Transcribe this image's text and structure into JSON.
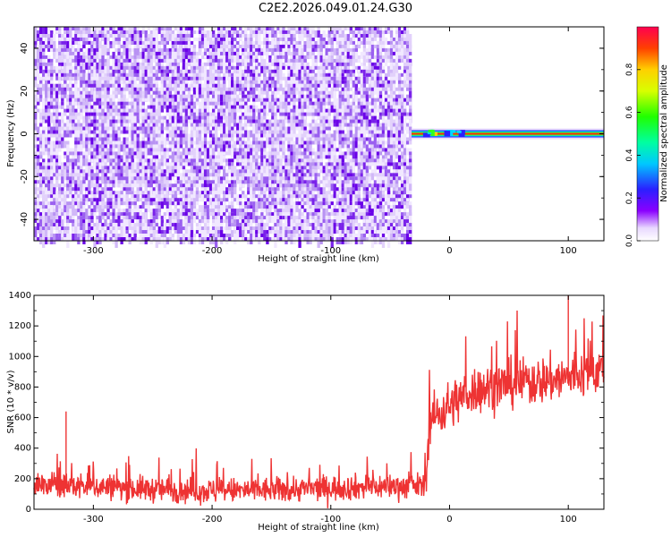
{
  "title": "C2E2.2026.049.01.24.G30",
  "colors": {
    "red": "#ee3333",
    "purple": "#6a00e8",
    "lavender": "#d7c3f6"
  },
  "chart_data": [
    {
      "type": "heatmap",
      "xlabel": "Height of straight line (km)",
      "ylabel": "Frequency (Hz)",
      "xlim": [
        -350,
        130
      ],
      "ylim": [
        -50,
        50
      ],
      "xticks": [
        -300,
        -200,
        -100,
        0,
        100
      ],
      "yticks": [
        -40,
        -20,
        0,
        20,
        40
      ],
      "noise_region_x": [
        -350,
        -32
      ],
      "signal_line_x": [
        -32,
        130
      ],
      "signal_frequency": 0,
      "colorbar": {
        "label": "Normalized spectral amplitude",
        "range": [
          0,
          1
        ],
        "ticks": [
          0.0,
          0.2,
          0.4,
          0.6,
          0.8
        ],
        "colormap": "rainbow"
      }
    },
    {
      "type": "line",
      "xlabel": "Height of straight line (km)",
      "ylabel": "SNR (10 * v/v)",
      "xlim": [
        -350,
        130
      ],
      "ylim": [
        0,
        1400
      ],
      "xticks": [
        -300,
        -200,
        -100,
        0,
        100
      ],
      "yticks": [
        0,
        200,
        400,
        600,
        800,
        1000,
        1200,
        1400
      ],
      "series": [
        {
          "color": "#ee3333",
          "x": [
            -350,
            -300,
            -250,
            -200,
            -150,
            -100,
            -50,
            -20,
            -17,
            -10,
            0,
            20,
            50,
            100,
            130
          ],
          "y": [
            160,
            150,
            130,
            120,
            125,
            140,
            150,
            155,
            580,
            620,
            680,
            780,
            820,
            860,
            920
          ]
        }
      ],
      "annotations": [
        {
          "x": -323,
          "y": 640
        },
        {
          "x": 100,
          "y": 1400
        }
      ]
    }
  ]
}
